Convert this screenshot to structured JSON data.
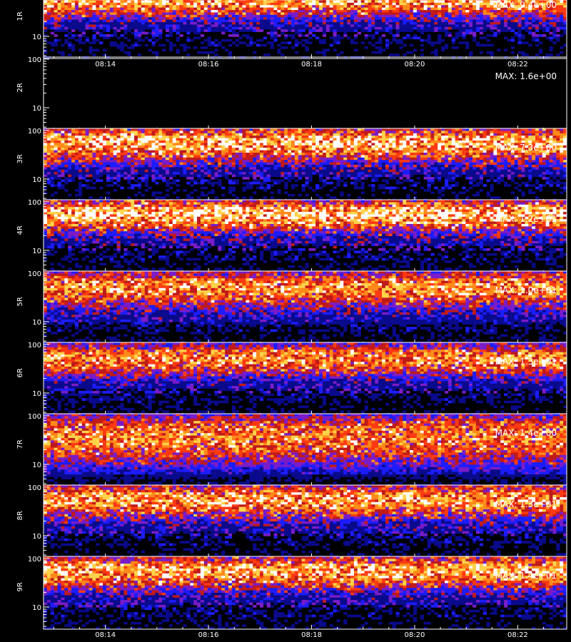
{
  "chart_data": {
    "type": "heatmap",
    "time_ticks": [
      "08:14",
      "08:16",
      "08:18",
      "08:20",
      "08:22"
    ],
    "y_scale": "log",
    "y_ticks": [
      "100",
      "10"
    ],
    "colors": {
      "background": "#000000",
      "axis": "#ffffff",
      "colormap": [
        "#000000",
        "#0a0a8c",
        "#1c1cff",
        "#7a1cc8",
        "#c01a1a",
        "#ff3a12",
        "#ff8a1a",
        "#ffd24a",
        "#ffffff"
      ]
    },
    "panels": [
      {
        "label": "1R",
        "max_label": "MAX: 9.4e+00",
        "max_value": 9.4,
        "band_center": 55,
        "band_width": 0.55,
        "intensity": 0.85
      },
      {
        "label": "2R",
        "max_label": "MAX: 1.6e+00",
        "max_value": 1.6,
        "band_center": 50,
        "band_width": 0.5,
        "intensity": 0.0
      },
      {
        "label": "3R",
        "max_label": "MAX: 7.3e+00",
        "max_value": 7.3,
        "band_center": 55,
        "band_width": 0.6,
        "intensity": 0.9
      },
      {
        "label": "4R",
        "max_label": "MAX: 1.2e+01",
        "max_value": 12.0,
        "band_center": 55,
        "band_width": 0.55,
        "intensity": 0.95
      },
      {
        "label": "5R",
        "max_label": "MAX: 1.0e+01",
        "max_value": 10.0,
        "band_center": 50,
        "band_width": 0.65,
        "intensity": 0.8
      },
      {
        "label": "6R",
        "max_label": "MAX: 1.3e+01",
        "max_value": 13.0,
        "band_center": 50,
        "band_width": 0.55,
        "intensity": 0.8
      },
      {
        "label": "7R",
        "max_label": "MAX: 1.4e+00",
        "max_value": 1.4,
        "band_center": 35,
        "band_width": 0.9,
        "intensity": 0.75
      },
      {
        "label": "8R",
        "max_label": "MAX: 1.3e+01",
        "max_value": 13.0,
        "band_center": 55,
        "band_width": 0.6,
        "intensity": 0.85
      },
      {
        "label": "9R",
        "max_label": "MAX: 1.4e+01",
        "max_value": 14.0,
        "band_center": 55,
        "band_width": 0.6,
        "intensity": 0.85
      }
    ]
  }
}
